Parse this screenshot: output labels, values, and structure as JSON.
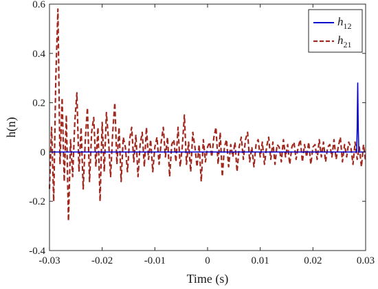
{
  "chart_data": {
    "type": "line",
    "title": "",
    "xlabel": "Time (s)",
    "ylabel": "h(n)",
    "xlim": [
      -0.03,
      0.03
    ],
    "ylim": [
      -0.4,
      0.6
    ],
    "x_ticks": [
      -0.03,
      -0.02,
      -0.01,
      0,
      0.01,
      0.02,
      0.03
    ],
    "x_tick_labels": [
      "-0.03",
      "-0.02",
      "-0.01",
      "0",
      "0.01",
      "0.02",
      "0.03"
    ],
    "y_ticks": [
      -0.4,
      -0.2,
      0,
      0.2,
      0.4,
      0.6
    ],
    "y_tick_labels": [
      "-0.4",
      "-0.2",
      "0",
      "0.2",
      "0.4",
      "0.6"
    ],
    "grid": false,
    "legend_position": "top-right",
    "series": [
      {
        "name": "h12",
        "legend_base": "h",
        "legend_sub": "12",
        "color": "#0000cc",
        "style": "solid",
        "x": [
          -0.03,
          0.0283,
          0.0284,
          0.0285,
          0.0286,
          0.0287,
          0.03
        ],
        "y": [
          0,
          0,
          0.1,
          0.28,
          0.1,
          0,
          0
        ]
      },
      {
        "name": "h21",
        "legend_base": "h",
        "legend_sub": "21",
        "color": "#a0281e",
        "style": "dashed",
        "x": [
          -0.03,
          -0.0296,
          -0.0292,
          -0.0288,
          -0.0284,
          -0.028,
          -0.0276,
          -0.0272,
          -0.0268,
          -0.0264,
          -0.026,
          -0.0256,
          -0.0252,
          -0.0248,
          -0.0244,
          -0.024,
          -0.0236,
          -0.0232,
          -0.0228,
          -0.0224,
          -0.022,
          -0.0216,
          -0.0212,
          -0.0208,
          -0.0204,
          -0.02,
          -0.0196,
          -0.0192,
          -0.0188,
          -0.0184,
          -0.018,
          -0.0176,
          -0.0172,
          -0.0168,
          -0.0164,
          -0.016,
          -0.0156,
          -0.0152,
          -0.0148,
          -0.0144,
          -0.014,
          -0.0136,
          -0.0132,
          -0.0128,
          -0.0124,
          -0.012,
          -0.0116,
          -0.0112,
          -0.0108,
          -0.0104,
          -0.01,
          -0.0096,
          -0.0092,
          -0.0088,
          -0.0084,
          -0.008,
          -0.0076,
          -0.0072,
          -0.0068,
          -0.0064,
          -0.006,
          -0.0056,
          -0.0052,
          -0.0048,
          -0.0044,
          -0.004,
          -0.0036,
          -0.0032,
          -0.0028,
          -0.0024,
          -0.002,
          -0.0016,
          -0.0012,
          -0.0008,
          -0.0004,
          0,
          0.0004,
          0.0008,
          0.0012,
          0.0016,
          0.002,
          0.0024,
          0.0028,
          0.0032,
          0.0036,
          0.004,
          0.0044,
          0.0048,
          0.0052,
          0.0056,
          0.006,
          0.0064,
          0.0068,
          0.0072,
          0.0076,
          0.008,
          0.0084,
          0.0088,
          0.0092,
          0.0096,
          0.01,
          0.0104,
          0.0108,
          0.0112,
          0.0116,
          0.012,
          0.0124,
          0.0128,
          0.0132,
          0.0136,
          0.014,
          0.0144,
          0.0148,
          0.0152,
          0.0156,
          0.016,
          0.0164,
          0.0168,
          0.0172,
          0.0176,
          0.018,
          0.0184,
          0.0188,
          0.0192,
          0.0196,
          0.02,
          0.0204,
          0.0208,
          0.0212,
          0.0216,
          0.022,
          0.0224,
          0.0228,
          0.0232,
          0.0236,
          0.024,
          0.0244,
          0.0248,
          0.0252,
          0.0256,
          0.026,
          0.0264,
          0.0268,
          0.0272,
          0.0276,
          0.028,
          0.0284,
          0.0288,
          0.0292,
          0.0296,
          0.03
        ],
        "y": [
          -0.15,
          0.1,
          -0.2,
          0.3,
          0.58,
          -0.05,
          0.22,
          -0.12,
          0.15,
          -0.28,
          0.05,
          -0.1,
          0.12,
          0.24,
          -0.08,
          0.1,
          -0.15,
          0.05,
          0.18,
          -0.12,
          0.08,
          0.14,
          -0.06,
          0.1,
          -0.2,
          0.12,
          -0.08,
          0.16,
          0.05,
          -0.1,
          0.08,
          0.2,
          -0.05,
          0.1,
          -0.12,
          0.06,
          0.02,
          -0.08,
          0.05,
          0.1,
          -0.04,
          0.07,
          -0.1,
          0.03,
          0.08,
          -0.06,
          0.1,
          -0.03,
          0.05,
          -0.08,
          0.02,
          0.06,
          -0.05,
          0.04,
          0.1,
          -0.02,
          0.06,
          -0.1,
          0.03,
          0.05,
          -0.04,
          0.1,
          -0.06,
          0.02,
          0.15,
          -0.05,
          0.04,
          -0.08,
          0.08,
          0.02,
          -0.06,
          0.03,
          -0.12,
          0.05,
          -0.04,
          0.02,
          0.04,
          -0.02,
          0.06,
          0.1,
          -0.05,
          0.08,
          -0.1,
          0.02,
          0.05,
          -0.06,
          0.03,
          -0.02,
          0.04,
          -0.08,
          0.02,
          0.06,
          -0.03,
          0.05,
          0.08,
          -0.04,
          0.02,
          -0.06,
          0.03,
          0.05,
          -0.02,
          0.04,
          -0.05,
          0.02,
          0.06,
          -0.03,
          0.04,
          -0.05,
          0.03,
          0.02,
          -0.04,
          0.05,
          -0.02,
          0.03,
          -0.05,
          0.02,
          0.04,
          -0.03,
          0.02,
          0.05,
          -0.04,
          0.03,
          -0.02,
          0.04,
          -0.05,
          0.02,
          0.03,
          -0.03,
          0.05,
          -0.02,
          0.04,
          -0.04,
          0.02,
          0.03,
          -0.02,
          0.05,
          -0.03,
          0.02,
          0.06,
          -0.04,
          0.03,
          -0.02,
          0.04,
          0.02,
          -0.05,
          0.04,
          -0.03,
          0.02,
          -0.06,
          0.03,
          -0.04
        ]
      }
    ]
  }
}
